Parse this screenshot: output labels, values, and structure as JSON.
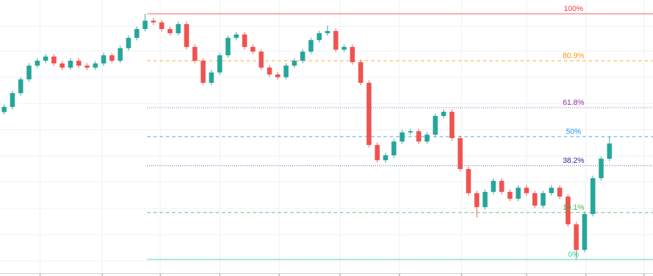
{
  "chart_data": {
    "type": "candlestick",
    "ylim": [
      0,
      100
    ],
    "up_color": "#26a69a",
    "down_color": "#ef5350",
    "grid": true,
    "open": [
      60.0,
      62.1,
      67.7,
      73.3,
      78.9,
      80.9,
      82.6,
      79.8,
      78.1,
      80.9,
      78.9,
      78.1,
      79.8,
      83.1,
      80.9,
      86.0,
      90.2,
      93.8,
      97.2,
      96.5,
      93.8,
      92.1,
      95.8,
      86.5,
      80.9,
      71.9,
      76.1,
      83.1,
      90.2,
      91.6,
      86.5,
      84.6,
      78.1,
      75.3,
      74.2,
      78.9,
      80.9,
      84.6,
      89.3,
      92.1,
      93.0,
      85.4,
      86.5,
      80.3,
      71.9,
      46.6,
      40.4,
      42.4,
      48.0,
      51.7,
      52.2,
      48.0,
      50.8,
      58.4,
      60.1,
      49.4,
      36.8,
      27.0,
      21.3,
      27.5,
      32.0,
      27.5,
      24.7,
      29.2,
      27.0,
      21.9,
      27.0,
      29.2,
      25.6,
      14.3,
      3.9,
      18.5,
      33.1,
      41.0
    ],
    "high": [
      63.1,
      68.7,
      74.3,
      79.9,
      81.9,
      83.6,
      83.6,
      80.8,
      81.9,
      81.9,
      79.9,
      80.8,
      84.1,
      84.1,
      87.0,
      91.2,
      94.8,
      100.0,
      98.2,
      97.5,
      94.8,
      96.8,
      96.8,
      87.5,
      81.9,
      77.1,
      84.1,
      91.2,
      92.6,
      92.6,
      87.5,
      85.6,
      79.1,
      76.3,
      79.9,
      81.9,
      85.6,
      90.3,
      93.1,
      95.2,
      94.0,
      87.5,
      87.5,
      81.3,
      72.9,
      47.6,
      43.4,
      49.0,
      52.7,
      53.2,
      53.2,
      51.8,
      59.4,
      61.1,
      61.1,
      50.4,
      37.8,
      28.0,
      28.5,
      33.0,
      33.0,
      28.5,
      30.2,
      30.2,
      28.0,
      28.0,
      30.2,
      30.2,
      26.6,
      15.3,
      19.5,
      34.1,
      42.0,
      50.0
    ],
    "low": [
      59.0,
      61.1,
      66.7,
      72.3,
      77.9,
      79.9,
      78.8,
      77.1,
      77.1,
      77.9,
      77.1,
      77.1,
      78.8,
      79.9,
      79.9,
      85.0,
      89.2,
      92.8,
      95.5,
      92.8,
      91.1,
      91.1,
      85.5,
      79.9,
      70.9,
      70.9,
      75.1,
      82.1,
      89.2,
      85.5,
      83.6,
      77.1,
      74.3,
      73.2,
      73.2,
      77.9,
      79.9,
      83.6,
      88.3,
      91.1,
      84.4,
      84.4,
      79.3,
      70.9,
      45.6,
      39.4,
      39.4,
      41.4,
      47.0,
      50.7,
      47.0,
      47.0,
      49.8,
      57.4,
      48.4,
      35.8,
      26.0,
      17.1,
      20.3,
      26.5,
      26.5,
      23.7,
      23.7,
      26.0,
      20.9,
      20.9,
      26.0,
      24.6,
      13.3,
      0.0,
      2.9,
      17.5,
      32.1,
      40.0
    ],
    "close": [
      62.1,
      67.7,
      73.3,
      78.9,
      80.9,
      82.6,
      79.8,
      78.1,
      80.9,
      78.9,
      78.1,
      79.8,
      83.1,
      80.9,
      86.0,
      90.2,
      93.8,
      97.2,
      96.5,
      93.8,
      92.1,
      95.8,
      86.5,
      80.9,
      71.9,
      76.1,
      83.1,
      90.2,
      91.6,
      86.5,
      84.6,
      78.1,
      75.3,
      74.2,
      78.9,
      80.9,
      84.6,
      89.3,
      92.1,
      93.0,
      85.4,
      86.5,
      80.3,
      71.9,
      46.6,
      40.4,
      42.4,
      48.0,
      51.7,
      52.2,
      48.0,
      50.8,
      58.4,
      60.1,
      49.4,
      36.8,
      27.0,
      21.3,
      27.5,
      32.0,
      27.5,
      24.7,
      29.2,
      27.0,
      21.9,
      27.0,
      29.2,
      25.6,
      14.3,
      3.9,
      18.5,
      33.1,
      41.0,
      47.2
    ],
    "fib_levels": [
      {
        "value": 100,
        "label": "100%",
        "color": "#f23645",
        "style": "solid"
      },
      {
        "value": 80.9,
        "label": "80.9%",
        "color": "#ff9800",
        "style": "dashed"
      },
      {
        "value": 61.8,
        "label": "61.8%",
        "color": "#9c27b0",
        "style": "dotted"
      },
      {
        "value": 50,
        "label": "50%",
        "color": "#2196f3",
        "style": "dashed"
      },
      {
        "value": 38.2,
        "label": "38.2%",
        "color": "#311b92",
        "style": "dotted"
      },
      {
        "value": 19.1,
        "label": "19.1%",
        "color": "#4caf50",
        "style": "dashed"
      },
      {
        "value": 0,
        "label": "0%",
        "color": "#26d79a",
        "style": "solid"
      }
    ]
  }
}
